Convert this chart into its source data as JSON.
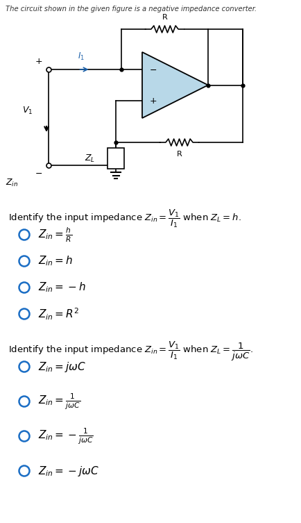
{
  "title": "The circuit shown in the given figure is a negative impedance converter.",
  "bg_color": "#ffffff",
  "opamp_fill": "#b8d8e8",
  "opamp_stroke": "#000000",
  "wire_color": "#000000",
  "blue_color": "#1a5fa8",
  "blue_circle_color": "#1a6dc4",
  "q1_options": [
    "$Z_{in} = \\frac{h}{R}$",
    "$Z_{in} = h$",
    "$Z_{in} = -h$",
    "$Z_{in} = R^2$"
  ],
  "q2_options": [
    "$Z_{in} = j\\omega C$",
    "$Z_{in} = \\frac{1}{j\\omega C}$",
    "$Z_{in} = -\\frac{1}{j\\omega C}$",
    "$Z_{in} = -j\\omega C$"
  ]
}
